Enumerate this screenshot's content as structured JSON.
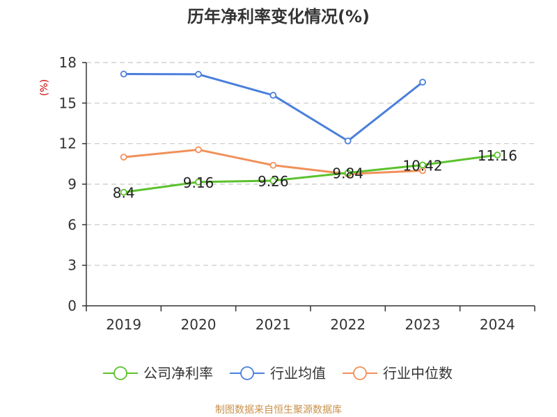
{
  "chart_data": {
    "type": "line",
    "title": "历年净利率变化情况(%)",
    "ylabel": "(%)",
    "xlabel": "",
    "categories": [
      "2019",
      "2020",
      "2021",
      "2022",
      "2023",
      "2024"
    ],
    "ylim": [
      0,
      18
    ],
    "yticks": [
      "0",
      "3",
      "6",
      "9",
      "12",
      "15",
      "18"
    ],
    "grid": true,
    "legend_position": "bottom",
    "series": [
      {
        "name": "公司净利率",
        "color": "#5bc12c",
        "values": [
          8.4,
          9.16,
          9.26,
          9.84,
          10.42,
          11.16
        ],
        "labels": [
          "8.4",
          "9.16",
          "9.26",
          "9.84",
          "10.42",
          "11.16"
        ]
      },
      {
        "name": "行业均值",
        "color": "#4a7fdc",
        "values": [
          17.15,
          17.13,
          15.58,
          12.2,
          16.55,
          null
        ]
      },
      {
        "name": "行业中位数",
        "color": "#f0905a",
        "values": [
          11.0,
          11.55,
          10.4,
          9.75,
          10.0,
          null
        ]
      }
    ]
  },
  "footer": {
    "source": "制图数据来自恒生聚源数据库"
  }
}
